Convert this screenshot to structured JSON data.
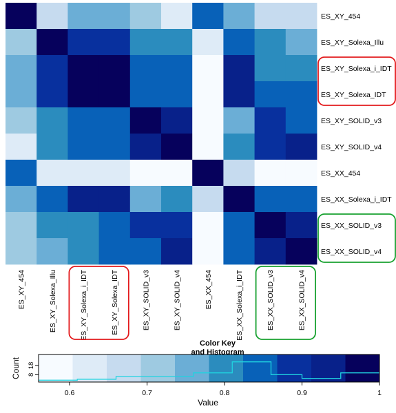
{
  "chart_data": [
    {
      "type": "heatmap",
      "rows": [
        "ES_XY_454",
        "ES_XY_Solexa_Illu",
        "ES_XY_Solexa_i_IDT",
        "ES_XY_Solexa_IDT",
        "ES_XY_SOLID_v3",
        "ES_XY_SOLID_v4",
        "ES_XX_454",
        "ES_XX_Solexa_i_IDT",
        "ES_XX_SOLID_v3",
        "ES_XX_SOLID_v4"
      ],
      "columns": [
        "ES_XY_454",
        "ES_XY_Solexa_Illu",
        "ES_XY_Solexa_i_IDT",
        "ES_XY_Solexa_IDT",
        "ES_XY_SOLID_v3",
        "ES_XY_SOLID_v4",
        "ES_XX_454",
        "ES_XX_Solexa_i_IDT",
        "ES_XX_SOLID_v3",
        "ES_XX_SOLID_v4"
      ],
      "values": [
        [
          1.0,
          0.68,
          0.76,
          0.76,
          0.7,
          0.64,
          0.86,
          0.74,
          0.69,
          0.69
        ],
        [
          0.7,
          1.0,
          0.9,
          0.9,
          0.8,
          0.8,
          0.62,
          0.86,
          0.78,
          0.74
        ],
        [
          0.76,
          0.9,
          1.0,
          1.0,
          0.86,
          0.86,
          0.6,
          0.94,
          0.82,
          0.8
        ],
        [
          0.76,
          0.9,
          1.0,
          1.0,
          0.86,
          0.86,
          0.6,
          0.94,
          0.84,
          0.84
        ],
        [
          0.7,
          0.8,
          0.84,
          0.84,
          1.0,
          0.95,
          0.56,
          0.74,
          0.9,
          0.86
        ],
        [
          0.64,
          0.8,
          0.84,
          0.84,
          0.95,
          1.0,
          0.56,
          0.8,
          0.9,
          0.95
        ],
        [
          0.86,
          0.62,
          0.62,
          0.62,
          0.58,
          0.58,
          1.0,
          0.68,
          0.58,
          0.58
        ],
        [
          0.74,
          0.86,
          0.95,
          0.95,
          0.74,
          0.8,
          0.68,
          1.0,
          0.86,
          0.86
        ],
        [
          0.7,
          0.78,
          0.8,
          0.84,
          0.9,
          0.9,
          0.56,
          0.86,
          1.0,
          0.92
        ],
        [
          0.7,
          0.74,
          0.8,
          0.84,
          0.86,
          0.95,
          0.56,
          0.86,
          0.92,
          1.0
        ]
      ],
      "colors": [
        "#f7fbff",
        "#deebf7",
        "#c6dbef",
        "#9ecae1",
        "#6baed6",
        "#2b8cbe",
        "#0861b8",
        "#08309e",
        "#08218a",
        "#06015c"
      ],
      "highlights": [
        {
          "rows": [
            "ES_XY_Solexa_i_IDT",
            "ES_XY_Solexa_IDT"
          ],
          "columns": [
            "ES_XY_Solexa_i_IDT",
            "ES_XY_Solexa_IDT"
          ],
          "color": "#e31a1c"
        },
        {
          "rows": [
            "ES_XX_SOLID_v3",
            "ES_XX_SOLID_v4"
          ],
          "columns": [
            "ES_XX_SOLID_v3",
            "ES_XX_SOLID_v4"
          ],
          "color": "#17a12f"
        }
      ]
    },
    {
      "type": "bar",
      "title": "Color Key\nand Histogram",
      "xlabel": "Value",
      "ylabel": "Count",
      "xticks": [
        0.6,
        0.7,
        0.8,
        0.9,
        1
      ],
      "yticks": [
        8,
        18
      ],
      "xlim": [
        0.56,
        1.0
      ],
      "ylim": [
        0,
        30
      ],
      "bin_edges": [
        0.56,
        0.61,
        0.66,
        0.71,
        0.76,
        0.81,
        0.86,
        0.9,
        0.95,
        1.0
      ],
      "counts": [
        2,
        3,
        6,
        6,
        10,
        22,
        8,
        4,
        10
      ],
      "line_color": "#1fd3e0"
    }
  ]
}
